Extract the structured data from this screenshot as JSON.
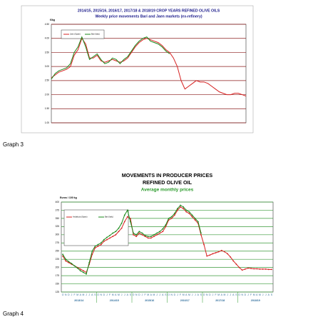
{
  "chart_data": [
    {
      "type": "line",
      "title": "2014/15,  2015/16, 2016/17, 2017/18 & 2018/19 CROP YEARS REFINED OLIVE OILS",
      "subtitle": "Weekly  price movements Bari  and  Jaen markets (ex-refinery)",
      "y_label": "€/kg",
      "ylim": [
        1,
        4.5
      ],
      "yticks": [
        {
          "value": 1,
          "label": "1.00"
        },
        {
          "value": 1.5,
          "label": "1.50"
        },
        {
          "value": 2,
          "label": "2.00"
        },
        {
          "value": 2.5,
          "label": "2.50"
        },
        {
          "value": 3,
          "label": "3.00"
        },
        {
          "value": 3.5,
          "label": "3.50"
        },
        {
          "value": 4,
          "label": "4.00"
        },
        {
          "value": 4.5,
          "label": "4.50"
        }
      ],
      "grid": true,
      "grid_color": "#8b1a1a",
      "series": [
        {
          "name": "Jaen (Spain)",
          "color": "#d62020",
          "values": [
            2.6,
            2.7,
            2.8,
            2.85,
            2.9,
            3.0,
            3.4,
            3.6,
            4.0,
            3.8,
            3.3,
            3.3,
            3.4,
            3.2,
            3.15,
            3.2,
            3.25,
            3.2,
            3.15,
            3.2,
            3.3,
            3.5,
            3.7,
            3.85,
            3.95,
            4.0,
            3.95,
            3.9,
            3.85,
            3.75,
            3.6,
            3.5,
            3.3,
            3.0,
            2.5,
            2.2,
            2.3,
            2.4,
            2.5,
            2.45,
            2.45,
            2.4,
            2.3,
            2.2,
            2.1,
            2.05,
            2.0,
            2.0,
            2.05,
            2.05,
            2.0,
            1.95
          ]
        },
        {
          "name": "Bari (Italy)",
          "color": "#1a8a1a",
          "values": [
            2.55,
            2.75,
            2.85,
            2.9,
            2.95,
            3.1,
            3.5,
            3.7,
            4.05,
            3.7,
            3.25,
            3.35,
            3.45,
            3.25,
            3.1,
            3.15,
            3.3,
            3.25,
            3.1,
            3.25,
            3.35,
            3.55,
            3.75,
            3.9,
            4.0,
            4.05,
            3.9,
            3.85,
            3.8,
            3.7,
            3.55,
            3.45,
            null,
            null,
            null,
            null,
            null,
            null,
            null,
            null,
            null,
            null,
            null,
            null,
            null,
            null,
            null,
            null,
            null,
            null,
            null,
            null
          ]
        }
      ]
    },
    {
      "type": "line",
      "title": "MOVEMENTS IN PRODUCER PRICES",
      "subtitle": "REFINED OLIVE OIL",
      "note": "Average monthly prices",
      "y_label": "Euros / 100 kg",
      "ylim": [
        125,
        400
      ],
      "yticks": [
        125,
        150,
        175,
        200,
        225,
        250,
        275,
        300,
        325,
        350,
        375,
        400
      ],
      "grid": true,
      "grid_color": "#3a9a3a",
      "categories": [
        "O",
        "N",
        "D",
        "J",
        "F",
        "M",
        "A",
        "M",
        "J",
        "J",
        "A",
        "S",
        "O",
        "N",
        "D",
        "J",
        "F",
        "M",
        "A",
        "M",
        "J",
        "J",
        "A",
        "S",
        "O",
        "N",
        "D",
        "J",
        "F",
        "M",
        "A",
        "M",
        "J",
        "J",
        "A",
        "S",
        "O",
        "N",
        "D",
        "J",
        "F",
        "M",
        "A",
        "M",
        "J",
        "J",
        "A",
        "S",
        "O",
        "N",
        "D",
        "J",
        "F",
        "M",
        "A",
        "M",
        "J",
        "J",
        "A",
        "S",
        "O",
        "N",
        "D",
        "J",
        "F",
        "M",
        "A",
        "M",
        "J",
        "J",
        "A",
        "S"
      ],
      "x_groups": [
        "2013/14",
        "2014/15",
        "2015/16",
        "2016/17",
        "2017/18",
        "2018/19"
      ],
      "series": [
        {
          "name": "Andalucia (Spain)",
          "color": "#d62020",
          "values": [
            235,
            220,
            215,
            210,
            205,
            200,
            195,
            190,
            185,
            210,
            240,
            260,
            265,
            270,
            280,
            285,
            290,
            295,
            300,
            310,
            320,
            340,
            355,
            350,
            300,
            295,
            305,
            300,
            295,
            290,
            290,
            295,
            300,
            305,
            310,
            325,
            345,
            350,
            360,
            375,
            385,
            380,
            370,
            365,
            355,
            345,
            335,
            300,
            270,
            235,
            238,
            242,
            245,
            248,
            252,
            248,
            242,
            232,
            220,
            210,
            200,
            192,
            195,
            198,
            197,
            196,
            196,
            195,
            195,
            195,
            194,
            194
          ]
        },
        {
          "name": "Bari (Italy)",
          "color": "#1a8a1a",
          "values": [
            240,
            225,
            218,
            212,
            205,
            198,
            190,
            185,
            180,
            215,
            250,
            265,
            270,
            275,
            285,
            292,
            298,
            305,
            310,
            320,
            335,
            360,
            375,
            340,
            305,
            300,
            310,
            305,
            298,
            295,
            295,
            300,
            305,
            310,
            318,
            330,
            350,
            355,
            365,
            380,
            390,
            385,
            375,
            370,
            360,
            350,
            340,
            305,
            null,
            null,
            null,
            null,
            null,
            null,
            null,
            null,
            null,
            null,
            null,
            null,
            null,
            null,
            null,
            null,
            null,
            null,
            null,
            null,
            null,
            null,
            null,
            null
          ]
        }
      ]
    }
  ],
  "captions": [
    "Graph 3",
    "Graph 4"
  ]
}
